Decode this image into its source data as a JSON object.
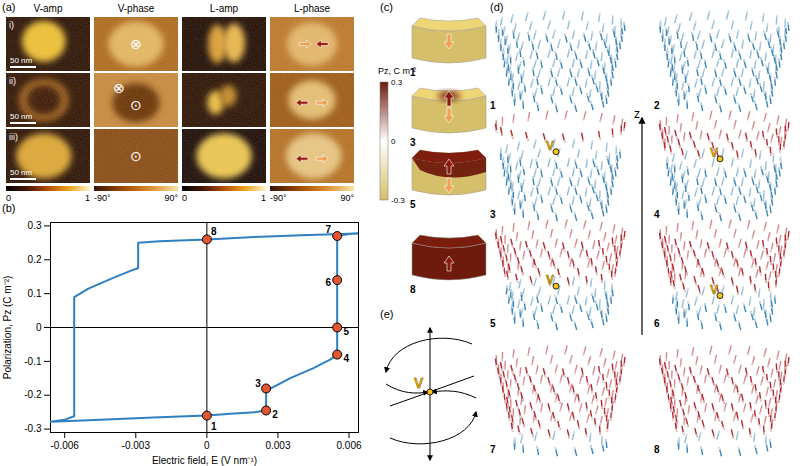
{
  "panel_a": {
    "label": "(a)",
    "columns": [
      "V-amp",
      "V-phase",
      "L-amp",
      "L-phase"
    ],
    "rows": [
      "i)",
      "ii)",
      "iii)"
    ],
    "scale_bar": "50 nm",
    "v_phase_symbols": [
      [
        "⊗"
      ],
      [
        "⊗",
        "⊙"
      ],
      [
        "⊙"
      ]
    ],
    "colorbars": [
      {
        "range": [
          0,
          1
        ],
        "ticks": [
          0,
          1
        ]
      },
      {
        "range": [
          -90,
          90
        ],
        "ticks": [
          {
            "value": -90,
            "label": "-90°"
          },
          {
            "value": 90,
            "label": "90°"
          }
        ]
      },
      {
        "range": [
          0,
          1
        ],
        "ticks": [
          0,
          1
        ]
      },
      {
        "range": [
          -90,
          90
        ],
        "ticks": [
          {
            "value": -90,
            "label": "-90°"
          },
          {
            "value": 90,
            "label": "90°"
          }
        ]
      }
    ]
  },
  "chart_data": {
    "label": "(b)",
    "type": "line",
    "x_label": "Electric field, E (V nm⁻¹)",
    "y_label": "Polarization, Pz (C m⁻²)",
    "color": "#2f7fc1",
    "x": [
      -0.0066,
      -0.005,
      -0.004,
      -0.002,
      0,
      0.001,
      0.002,
      0.0025,
      0.0025,
      0.0027,
      0.0035,
      0.0045,
      0.0052,
      0.0055,
      0.0055,
      0.006,
      0.0066,
      0.006,
      0.004,
      0.002,
      0,
      -0.002,
      -0.0029,
      -0.0029,
      -0.0032,
      -0.004,
      -0.005,
      -0.0056,
      -0.0056,
      -0.006,
      -0.0066
    ],
    "values": [
      -0.278,
      -0.274,
      -0.271,
      -0.265,
      -0.26,
      -0.255,
      -0.25,
      -0.245,
      -0.19,
      -0.18,
      -0.15,
      -0.12,
      -0.095,
      -0.08,
      0.27,
      0.276,
      0.279,
      0.277,
      0.272,
      0.267,
      0.26,
      0.255,
      0.25,
      0.175,
      0.168,
      0.145,
      0.115,
      0.09,
      -0.262,
      -0.272,
      -0.278
    ],
    "xlim": [
      -0.0066,
      0.0064
    ],
    "xticks": [
      -0.006,
      -0.003,
      0,
      0.003,
      0.006
    ],
    "ylim": [
      -0.31,
      0.31
    ],
    "yticks": [
      -0.3,
      -0.2,
      -0.1,
      0,
      0.1,
      0.2,
      0.3
    ],
    "reference_lines": {
      "x": 0,
      "y": 0
    },
    "annotations": [
      {
        "text": "1",
        "x": 0,
        "y": -0.26
      },
      {
        "text": "2",
        "x": 0.0025,
        "y": -0.245
      },
      {
        "text": "3",
        "x": 0.0025,
        "y": -0.18
      },
      {
        "text": "4",
        "x": 0.0055,
        "y": -0.08
      },
      {
        "text": "5",
        "x": 0.0055,
        "y": 0
      },
      {
        "text": "6",
        "x": 0.0055,
        "y": 0.14
      },
      {
        "text": "7",
        "x": 0.0055,
        "y": 0.27
      },
      {
        "text": "8",
        "x": 0,
        "y": 0.26
      }
    ]
  },
  "panel_c": {
    "label": "(c)",
    "colorbar": {
      "label": "Pz, C m⁻²",
      "range": [
        -0.3,
        0.3
      ],
      "ticks": [
        0.3,
        0,
        -0.3
      ]
    },
    "states": [
      "1",
      "3",
      "5",
      "8"
    ]
  },
  "panel_d": {
    "label": "(d)",
    "states": [
      "1",
      "2",
      "3",
      "4",
      "5",
      "6",
      "7",
      "8"
    ],
    "vortex_states": [
      "3",
      "4",
      "5",
      "6"
    ],
    "vortex_label": "V",
    "axis_label": "z"
  },
  "panel_e": {
    "label": "(e)",
    "vortex_label": "V"
  }
}
